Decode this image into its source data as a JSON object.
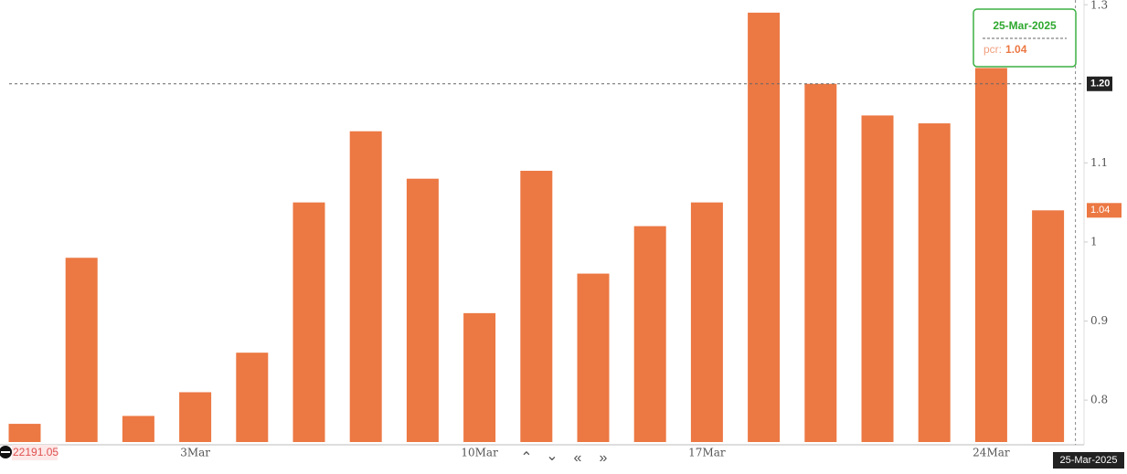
{
  "chart_data": {
    "type": "bar",
    "categories": [
      null,
      null,
      null,
      "3Mar",
      null,
      null,
      null,
      null,
      "10Mar",
      null,
      null,
      null,
      "17Mar",
      null,
      null,
      null,
      null,
      "24Mar",
      null
    ],
    "values": [
      0.77,
      0.98,
      0.78,
      0.81,
      0.86,
      1.05,
      1.14,
      1.08,
      0.91,
      1.09,
      0.96,
      1.02,
      1.05,
      1.29,
      1.2,
      1.16,
      1.15,
      1.22,
      1.04
    ],
    "color": "#ec7843",
    "ylim": [
      0.747,
      1.306
    ],
    "yticks": [
      0.8,
      0.9,
      1,
      1.1,
      1.3
    ],
    "crosshair": {
      "y": {
        "value": 1.2,
        "label": "1.20"
      },
      "x_label": "25-Mar-2025"
    },
    "tooltip": {
      "field": "pcr:"
    },
    "price_label": 22191.05
  }
}
